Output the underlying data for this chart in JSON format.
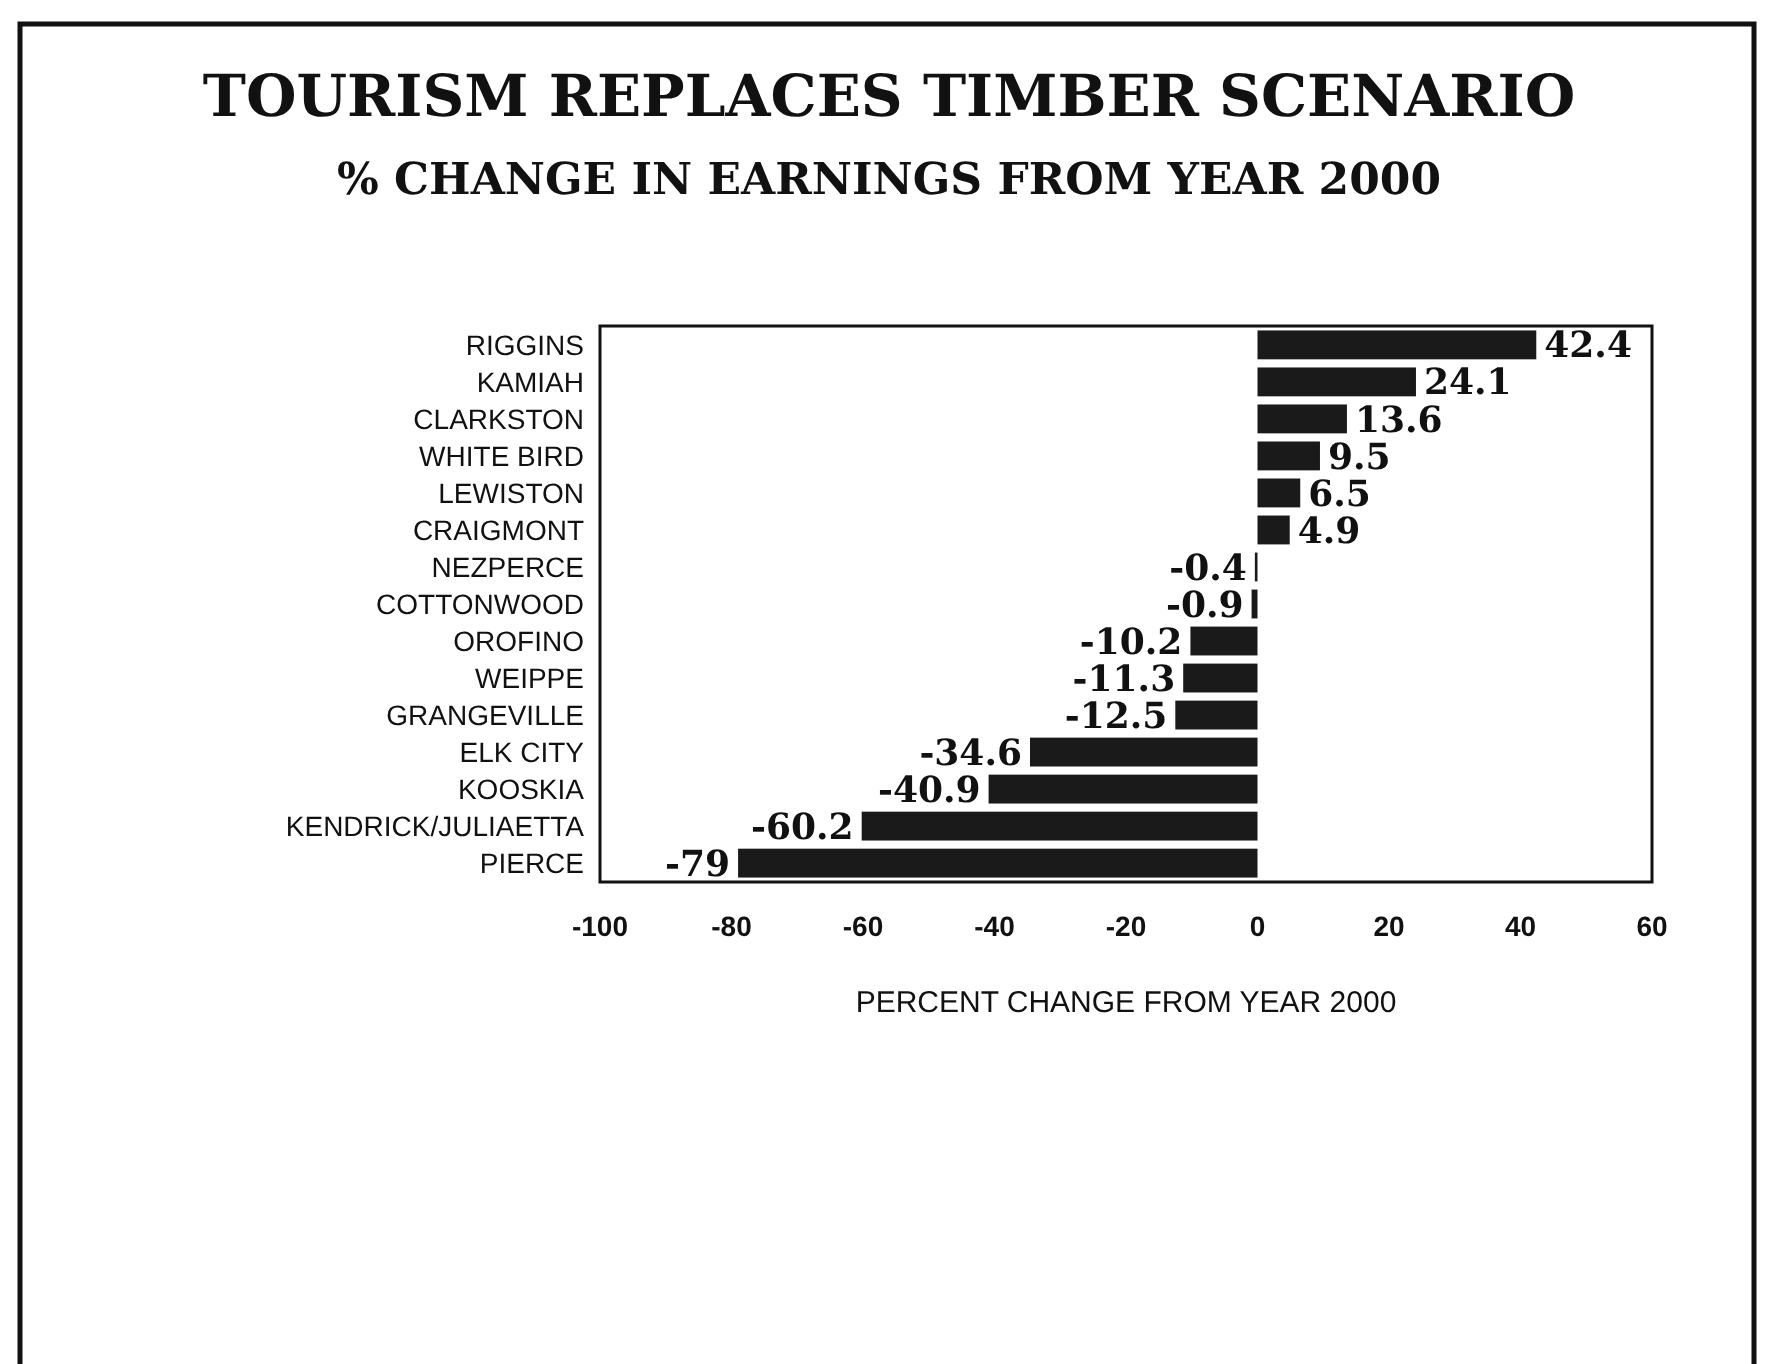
{
  "chart_data": {
    "type": "bar",
    "orientation": "horizontal",
    "title": "TOURISM REPLACES TIMBER SCENARIO",
    "subtitle": "% CHANGE IN EARNINGS FROM YEAR 2000",
    "xlabel": "PERCENT CHANGE FROM YEAR 2000",
    "categories": [
      "RIGGINS",
      "KAMIAH",
      "CLARKSTON",
      "WHITE BIRD",
      "LEWISTON",
      "CRAIGMONT",
      "NEZPERCE",
      "COTTONWOOD",
      "OROFINO",
      "WEIPPE",
      "GRANGEVILLE",
      "ELK CITY",
      "KOOSKIA",
      "KENDRICK/JULIAETTA",
      "PIERCE"
    ],
    "values": [
      42.4,
      24.1,
      13.6,
      9.5,
      6.5,
      4.9,
      -0.4,
      -0.9,
      -10.2,
      -11.3,
      -12.5,
      -34.6,
      -40.9,
      -60.2,
      -79
    ],
    "color": "#1a1a1a",
    "xlim": [
      -100,
      60
    ],
    "xticks": [
      -100,
      -80,
      -60,
      -40,
      -20,
      0,
      20,
      40,
      60
    ],
    "data_labels": true
  }
}
